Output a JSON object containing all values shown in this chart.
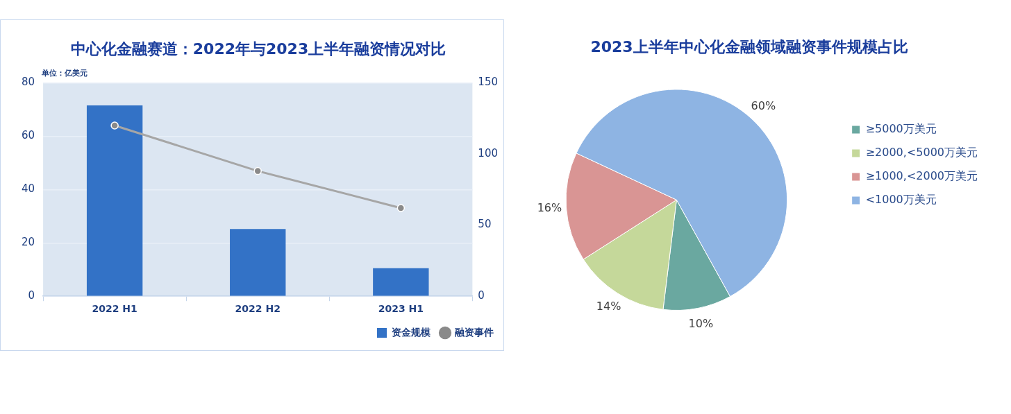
{
  "chart_data": [
    {
      "type": "bar",
      "title": "中心化金融赛道：2022年与2023上半年融资情况对比",
      "ylabel": "单位：亿美元",
      "categories": [
        "2022 H1",
        "2022 H2",
        "2023 H1"
      ],
      "series": [
        {
          "name": "资金规模",
          "type": "bar",
          "color": "#3372c6",
          "values": [
            71.5,
            25.2,
            10.5
          ]
        },
        {
          "name": "融资事件",
          "type": "line",
          "axis": "y2",
          "color": "#a6a6a6",
          "values": [
            120,
            88,
            62
          ]
        }
      ],
      "ylim": [
        0,
        80
      ],
      "yticks": [
        0,
        20,
        40,
        60,
        80
      ],
      "y2lim": [
        0,
        150
      ],
      "y2ticks": [
        0,
        50,
        100,
        150
      ],
      "grid": "y",
      "marker": "circle",
      "legend": "bottom right"
    },
    {
      "type": "pie",
      "title": "2023上半年中心化金融领域融资事件规模占比",
      "categories": [
        "≥5000万美元",
        "≥2000,<5000万美元",
        "≥1000,<2000万美元",
        "<1000万美元"
      ],
      "values": [
        10,
        14,
        16,
        60
      ],
      "colors": [
        "#6aa8a0",
        "#c5d89a",
        "#d99594",
        "#8eb4e3"
      ],
      "value_labels": [
        "10%",
        "14%",
        "16%",
        "60%"
      ],
      "legend": "right"
    }
  ]
}
